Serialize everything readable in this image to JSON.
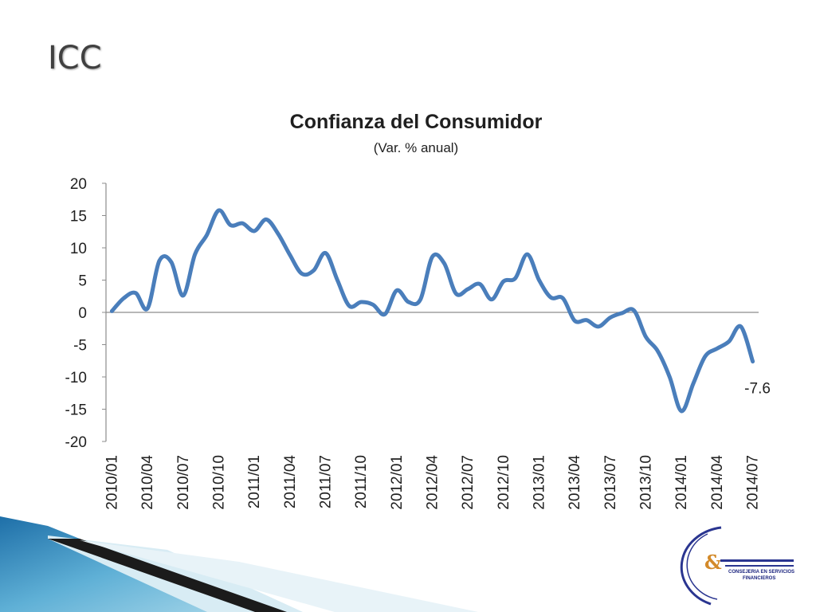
{
  "slide": {
    "title": "ICC"
  },
  "chart_data": {
    "type": "line",
    "title": "Confianza del Consumidor",
    "subtitle": "(Var. % anual)",
    "xlabel": "",
    "ylabel": "",
    "ylim": [
      -20,
      20
    ],
    "yticks": [
      20,
      15,
      10,
      5,
      0,
      -5,
      -10,
      -15,
      -20
    ],
    "grid": false,
    "legend": "none",
    "line_color": "#4a7ebb",
    "x": [
      "2010/01",
      "2010/02",
      "2010/03",
      "2010/04",
      "2010/05",
      "2010/06",
      "2010/07",
      "2010/08",
      "2010/09",
      "2010/10",
      "2010/11",
      "2010/12",
      "2011/01",
      "2011/02",
      "2011/03",
      "2011/04",
      "2011/05",
      "2011/06",
      "2011/07",
      "2011/08",
      "2011/09",
      "2011/10",
      "2011/11",
      "2011/12",
      "2012/01",
      "2012/02",
      "2012/03",
      "2012/04",
      "2012/05",
      "2012/06",
      "2012/07",
      "2012/08",
      "2012/09",
      "2012/10",
      "2012/11",
      "2012/12",
      "2013/01",
      "2013/02",
      "2013/03",
      "2013/04",
      "2013/05",
      "2013/06",
      "2013/07",
      "2013/08",
      "2013/09",
      "2013/10",
      "2013/11",
      "2013/12",
      "2014/01",
      "2014/02",
      "2014/03",
      "2014/04",
      "2014/05",
      "2014/06",
      "2014/07"
    ],
    "tick_labels": [
      "2010/01",
      "2010/04",
      "2010/07",
      "2010/10",
      "2011/01",
      "2011/04",
      "2011/07",
      "2011/10",
      "2012/01",
      "2012/04",
      "2012/07",
      "2012/10",
      "2013/01",
      "2013/04",
      "2013/07",
      "2013/10",
      "2014/01",
      "2014/04",
      "2014/07"
    ],
    "series": [
      {
        "values": [
          0.2,
          2.2,
          3.0,
          0.6,
          8.0,
          7.8,
          2.6,
          9.0,
          12.0,
          15.8,
          13.5,
          13.8,
          12.6,
          14.4,
          12.2,
          8.9,
          6.0,
          6.5,
          9.2,
          5.0,
          1.0,
          1.6,
          1.2,
          -0.3,
          3.4,
          1.6,
          2.0,
          8.6,
          7.6,
          2.9,
          3.6,
          4.4,
          2.0,
          4.8,
          5.3,
          9.0,
          5.0,
          2.3,
          2.2,
          -1.3,
          -1.2,
          -2.2,
          -0.8,
          -0.1,
          0.3,
          -3.8,
          -6.0,
          -10.0,
          -15.3,
          -11.0,
          -6.8,
          -5.6,
          -4.5,
          -2.2,
          -7.6
        ]
      }
    ],
    "annotations": [
      {
        "x": "2014/07",
        "text": "-7.6"
      }
    ]
  },
  "logo": {
    "mark": "&",
    "lines": [
      "CONSEJERIA EN SERVICIOS",
      "FINANCIEROS"
    ]
  }
}
